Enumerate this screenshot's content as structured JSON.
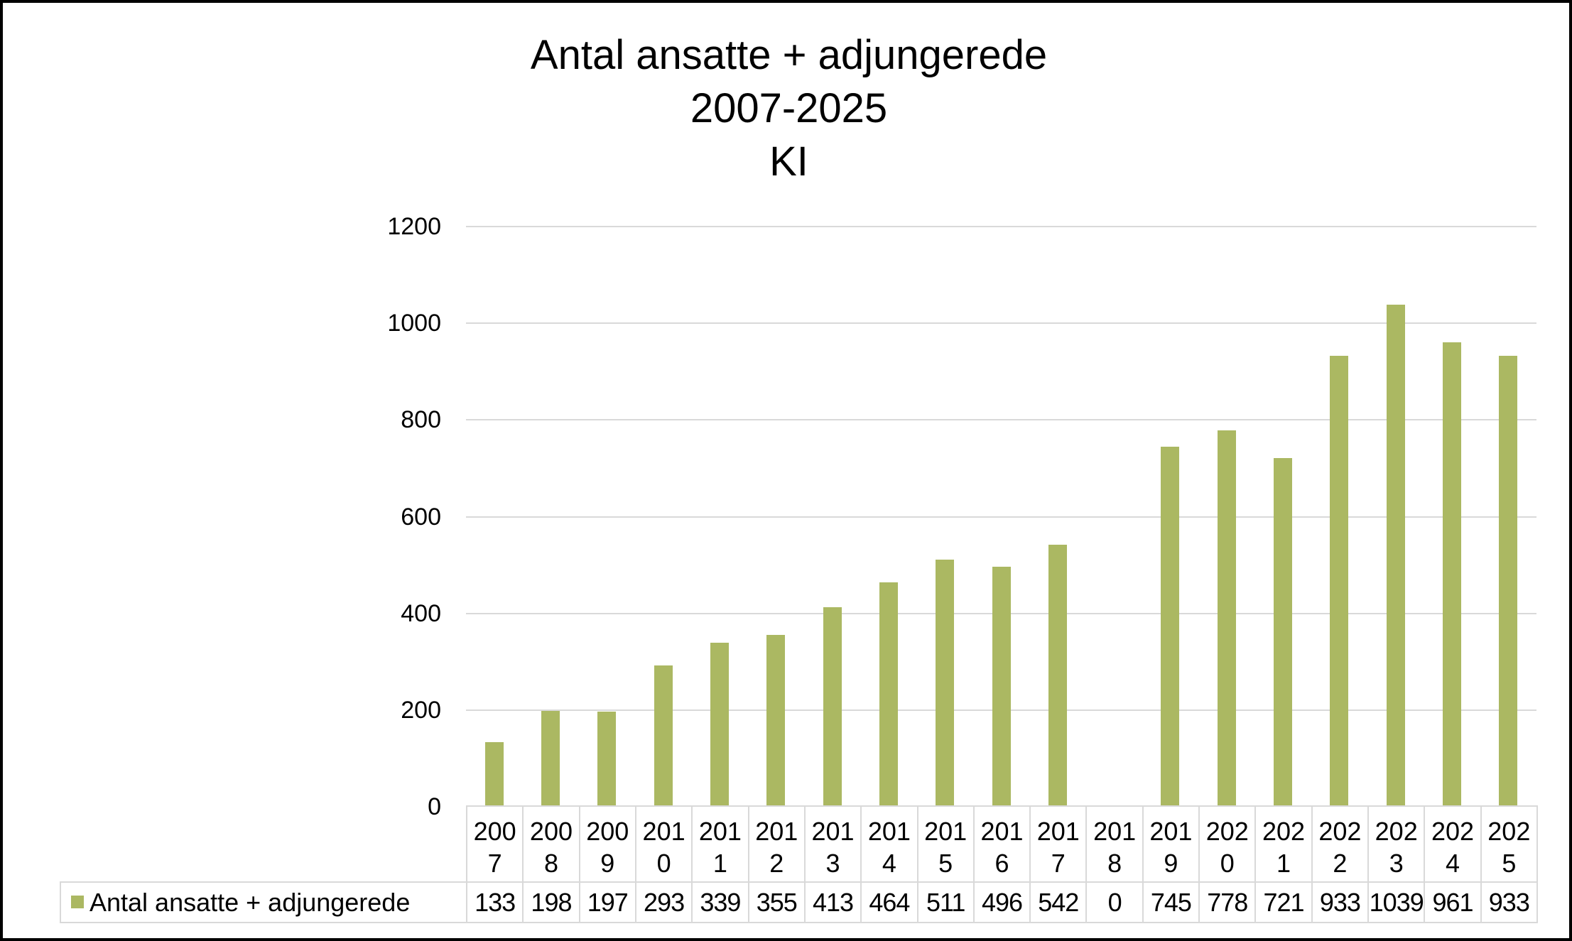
{
  "chart_data": {
    "type": "bar",
    "title": [
      "Antal ansatte + adjungerede",
      "2007-2025",
      "KI"
    ],
    "categories": [
      "2007",
      "2008",
      "2009",
      "2010",
      "2011",
      "2012",
      "2013",
      "2014",
      "2015",
      "2016",
      "2017",
      "2018",
      "2019",
      "2020",
      "2021",
      "2022",
      "2023",
      "2024",
      "2025"
    ],
    "series": [
      {
        "name": "Antal ansatte + adjungerede",
        "values": [
          133,
          198,
          197,
          293,
          339,
          355,
          413,
          464,
          511,
          496,
          542,
          0,
          745,
          778,
          721,
          933,
          1039,
          961,
          933
        ],
        "color": "#abb862"
      }
    ],
    "xlabel": "",
    "ylabel": "",
    "ylim": [
      0,
      1200
    ],
    "yticks": [
      "0",
      "200",
      "400",
      "600",
      "800",
      "1000",
      "1200"
    ],
    "grid": true,
    "legend": "bottom data table",
    "data_table": true
  }
}
